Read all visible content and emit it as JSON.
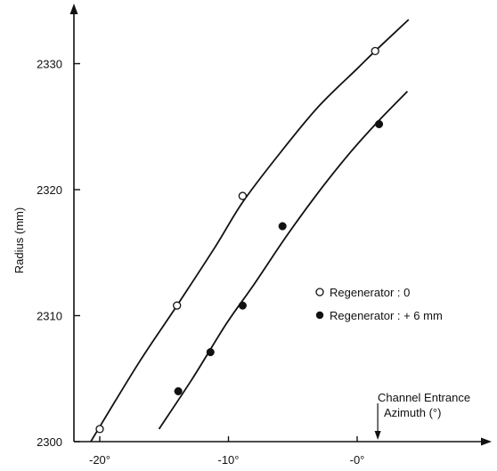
{
  "chart_data": {
    "type": "scatter",
    "title": "",
    "xlabel": "Azimuth (°)",
    "ylabel": "Radius (mm)",
    "xlim": [
      -21.5,
      3.3
    ],
    "ylim": [
      2300,
      2334
    ],
    "x_ticks": [
      {
        "value": -20,
        "label": "-20°"
      },
      {
        "value": -10,
        "label": "-10°"
      },
      {
        "value": 0,
        "label": "-0°"
      }
    ],
    "y_ticks": [
      {
        "value": 2300,
        "label": "2300"
      },
      {
        "value": 2310,
        "label": "2310"
      },
      {
        "value": 2320,
        "label": "2320"
      },
      {
        "value": 2330,
        "label": "2330"
      }
    ],
    "series": [
      {
        "name": "Regenerator : 0",
        "marker": "open-circle",
        "x": [
          -20.0,
          -14.0,
          -8.9,
          1.4
        ],
        "y": [
          2301.0,
          2310.8,
          2319.5,
          2331.0
        ],
        "fit_x": [
          -20.7,
          -17.0,
          -14.0,
          -11.0,
          -8.9,
          -6.0,
          -3.0,
          0.0,
          1.4,
          4.0
        ],
        "fit_y": [
          2300.0,
          2306.2,
          2310.8,
          2315.5,
          2319.0,
          2322.9,
          2326.6,
          2329.6,
          2331.0,
          2333.5
        ]
      },
      {
        "name": "Regenerator : + 6 mm",
        "marker": "filled-circle",
        "x": [
          -13.9,
          -11.4,
          -8.9,
          -5.8,
          1.7
        ],
        "y": [
          2304.0,
          2307.1,
          2310.8,
          2317.1,
          2325.2
        ],
        "fit_x": [
          -15.4,
          -12.8,
          -10.2,
          -8.0,
          -5.5,
          -3.0,
          -0.5,
          1.7,
          3.9
        ],
        "fit_y": [
          2301.0,
          2305.0,
          2309.3,
          2312.5,
          2316.3,
          2319.8,
          2323.0,
          2325.5,
          2327.8
        ]
      }
    ],
    "legend_position": "right-middle",
    "annotations": [
      {
        "text": "Channel Entrance",
        "x": 1.6
      }
    ],
    "grid": false
  }
}
